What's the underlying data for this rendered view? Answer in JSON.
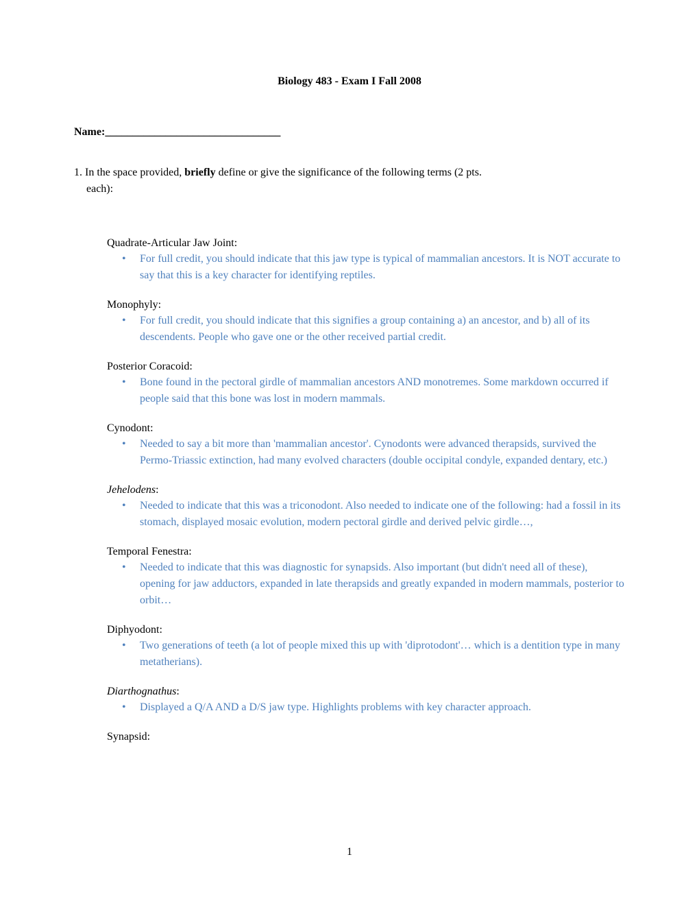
{
  "title": "Biology 483 - Exam I Fall 2008",
  "name_label": "Name:________________________________",
  "question_line1": "1. In the space provided, ",
  "question_bold": "briefly",
  "question_line1b": " define or give the significance of the following terms (2 pts.",
  "question_line2": "each):",
  "terms": [
    {
      "label": "Quadrate-Articular Jaw Joint:",
      "italic": false,
      "answer": "For full credit, you should indicate that this jaw type is typical of mammalian ancestors. It is NOT accurate to say that this is a key character for identifying reptiles."
    },
    {
      "label": "Monophyly:",
      "italic": false,
      "answer": "For full credit, you should indicate that this signifies a group containing a) an ancestor, and b) all of its descendents. People who gave one or the other received partial credit."
    },
    {
      "label": "Posterior Coracoid:",
      "italic": false,
      "answer": "Bone found in the pectoral girdle of mammalian ancestors AND monotremes. Some markdown occurred if people said that this bone was lost in modern mammals."
    },
    {
      "label": "Cynodont:",
      "italic": false,
      "answer": "Needed to say a bit more than 'mammalian ancestor'. Cynodonts were advanced therapsids, survived the Permo-Triassic extinction, had many evolved characters (double occipital condyle, expanded dentary, etc.)"
    },
    {
      "label_italic": "Jehelodens",
      "label_suffix": ":",
      "italic": true,
      "answer": "Needed to indicate that this was a triconodont. Also needed to indicate one of the following: had a fossil in its stomach, displayed mosaic evolution, modern pectoral girdle and derived pelvic girdle…,"
    },
    {
      "label": "Temporal Fenestra:",
      "italic": false,
      "answer": "Needed to indicate that this was diagnostic for synapsids. Also important (but didn't need all of these), opening for jaw adductors, expanded in late therapsids and greatly expanded in modern mammals, posterior to orbit…"
    },
    {
      "label": "Diphyodont:",
      "italic": false,
      "answer": "Two generations of teeth (a lot of people mixed this up with 'diprotodont'… which is a dentition type in many metatherians)."
    },
    {
      "label_italic": "Diarthognathus",
      "label_suffix": ":",
      "italic": true,
      "answer": "Displayed a Q/A AND a D/S jaw type. Highlights problems with key character approach."
    },
    {
      "label": "Synapsid:",
      "italic": false,
      "answer": ""
    }
  ],
  "page_number": "1",
  "colors": {
    "answer_color": "#4f81bd",
    "text_color": "#000000",
    "background": "#ffffff"
  }
}
